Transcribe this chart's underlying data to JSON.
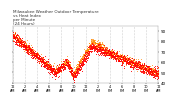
{
  "title": "Milwaukee Weather Outdoor Temperature\nvs Heat Index\nper Minute\n(24 Hours)",
  "title_color": "#333333",
  "title_fontsize": 3.0,
  "background_color": "#ffffff",
  "plot_bg_color": "#ffffff",
  "dot_color_temp": "#ff0000",
  "dot_color_heat": "#ff8800",
  "dot_size": 0.4,
  "ylim": [
    40,
    95
  ],
  "yticks": [
    40,
    50,
    60,
    70,
    80,
    90
  ],
  "ytick_fontsize": 3.0,
  "xtick_fontsize": 2.5,
  "grid_color": "#aaaaaa",
  "num_points": 1440
}
